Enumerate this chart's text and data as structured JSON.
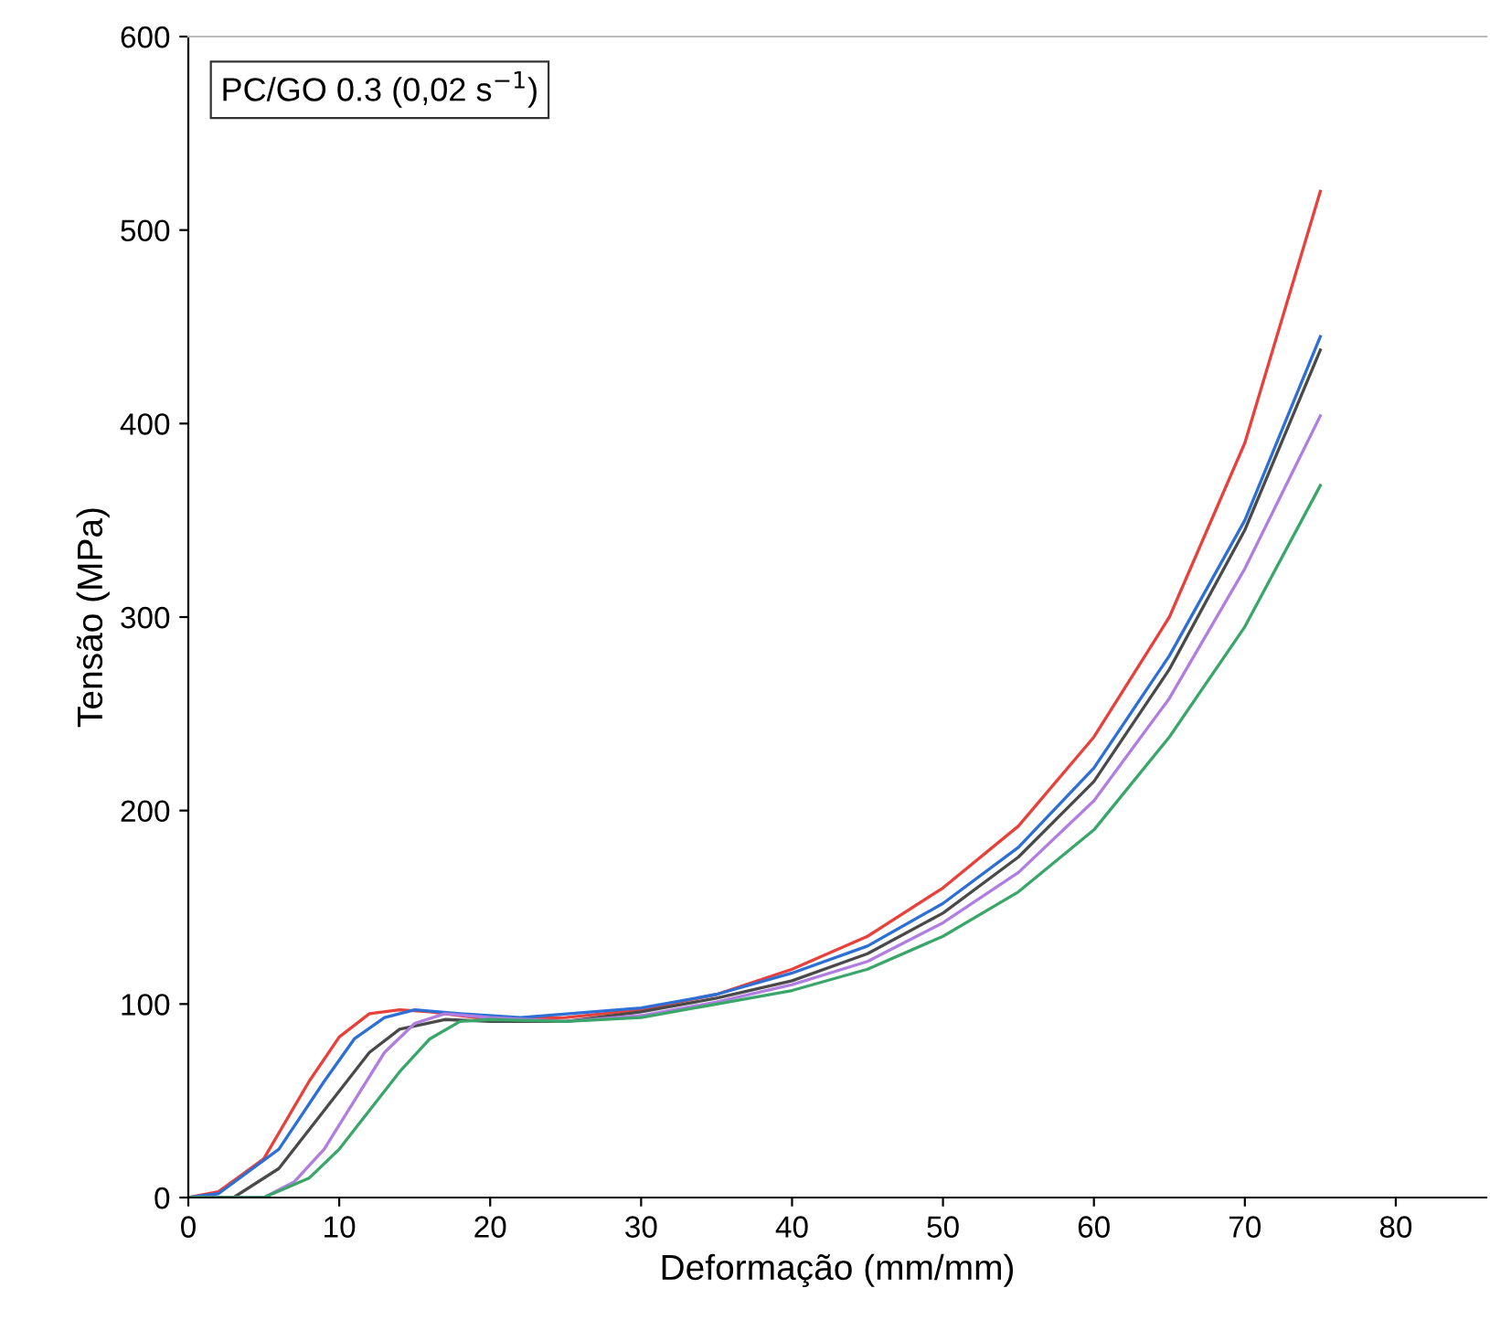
{
  "chart_data": {
    "type": "line",
    "xlabel": "Deformação (mm/mm)",
    "ylabel": "Tensão (MPa)",
    "annotations": [
      "PC/GO 0.3 (0,02 s$^{−1}$)"
    ],
    "xlim": [
      0,
      86
    ],
    "xticks": [
      0,
      10,
      20,
      30,
      40,
      50,
      60,
      70,
      80
    ],
    "ylim": [
      0,
      600
    ],
    "yticks": [
      0,
      100,
      200,
      300,
      400,
      500,
      600
    ],
    "grid": false,
    "legend": false,
    "series": [
      {
        "color": "#e8403a",
        "x": [
          0,
          2,
          5,
          8,
          10,
          12,
          14,
          16,
          20,
          25,
          30,
          35,
          40,
          45,
          50,
          55,
          60,
          65,
          70,
          75
        ],
        "values": [
          0,
          3,
          20,
          60,
          83,
          95,
          97,
          96,
          92,
          93,
          97,
          105,
          118,
          135,
          160,
          192,
          238,
          300,
          390,
          520
        ]
      },
      {
        "color": "#2e6fd6",
        "x": [
          0,
          2,
          6,
          9,
          11,
          13,
          15,
          18,
          22,
          30,
          35,
          40,
          45,
          50,
          55,
          60,
          65,
          70,
          75
        ],
        "values": [
          0,
          2,
          25,
          60,
          82,
          93,
          97,
          95,
          93,
          98,
          105,
          116,
          130,
          152,
          181,
          222,
          280,
          350,
          445
        ]
      },
      {
        "color": "#4a4a4a",
        "x": [
          0,
          3,
          6,
          9,
          12,
          14,
          17,
          20,
          25,
          30,
          35,
          40,
          45,
          50,
          55,
          60,
          65,
          70,
          75
        ],
        "values": [
          0,
          0,
          15,
          45,
          75,
          87,
          92,
          91,
          91,
          96,
          103,
          112,
          126,
          147,
          176,
          215,
          273,
          345,
          438
        ]
      },
      {
        "color": "#b07ee0",
        "x": [
          0,
          5,
          7,
          9,
          11,
          13,
          15,
          17,
          20,
          25,
          30,
          35,
          40,
          45,
          50,
          55,
          60,
          65,
          70,
          75
        ],
        "values": [
          0,
          0,
          8,
          25,
          50,
          75,
          90,
          95,
          93,
          91,
          94,
          101,
          110,
          122,
          142,
          168,
          205,
          258,
          325,
          404
        ]
      },
      {
        "color": "#3aa66a",
        "x": [
          0,
          5,
          8,
          10,
          12,
          14,
          16,
          18,
          20,
          25,
          30,
          35,
          40,
          45,
          50,
          55,
          60,
          65,
          70,
          75
        ],
        "values": [
          0,
          0,
          10,
          25,
          45,
          65,
          82,
          91,
          92,
          91,
          93,
          100,
          107,
          118,
          135,
          158,
          190,
          238,
          295,
          368
        ]
      }
    ]
  }
}
